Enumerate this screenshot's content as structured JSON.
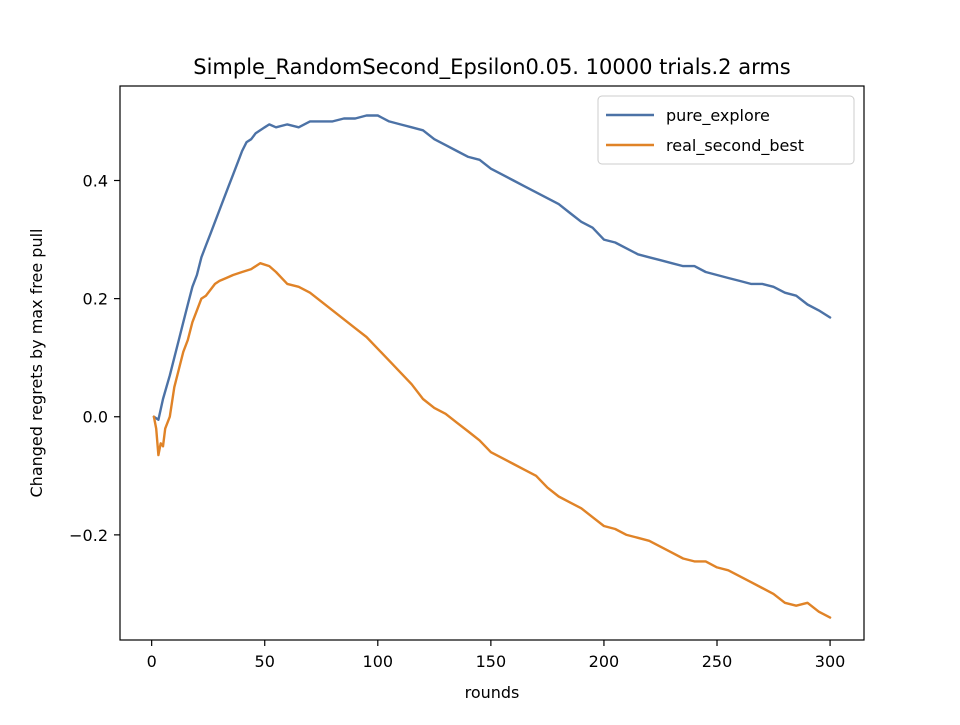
{
  "chart_data": {
    "type": "line",
    "title": "Simple_RandomSecond_Epsilon0.05. 10000 trials.2 arms",
    "xlabel": "rounds",
    "ylabel": "Changed regrets by max free pull",
    "xlim": [
      -14,
      315
    ],
    "ylim": [
      -0.378,
      0.56
    ],
    "xticks": [
      0,
      50,
      100,
      150,
      200,
      250,
      300
    ],
    "xtick_labels": [
      "0",
      "50",
      "100",
      "150",
      "200",
      "250",
      "300"
    ],
    "yticks": [
      -0.2,
      0.0,
      0.2,
      0.4
    ],
    "ytick_labels": [
      "−0.2",
      "0.0",
      "0.2",
      "0.4"
    ],
    "grid": false,
    "legend_position": "top-right",
    "series": [
      {
        "name": "pure_explore",
        "color": "#4c72a6",
        "x": [
          1,
          3,
          5,
          8,
          10,
          12,
          14,
          16,
          18,
          20,
          22,
          24,
          26,
          28,
          30,
          32,
          34,
          36,
          38,
          40,
          42,
          44,
          46,
          48,
          50,
          52,
          55,
          60,
          65,
          70,
          75,
          80,
          85,
          90,
          95,
          100,
          105,
          110,
          115,
          120,
          125,
          130,
          135,
          140,
          145,
          150,
          155,
          160,
          165,
          170,
          175,
          180,
          185,
          190,
          195,
          200,
          205,
          210,
          215,
          220,
          225,
          230,
          235,
          240,
          245,
          250,
          255,
          260,
          265,
          270,
          275,
          280,
          285,
          290,
          295,
          300
        ],
        "y": [
          0.0,
          -0.005,
          0.03,
          0.07,
          0.1,
          0.13,
          0.16,
          0.19,
          0.22,
          0.24,
          0.27,
          0.29,
          0.31,
          0.33,
          0.35,
          0.37,
          0.39,
          0.41,
          0.43,
          0.45,
          0.465,
          0.47,
          0.48,
          0.485,
          0.49,
          0.495,
          0.49,
          0.495,
          0.49,
          0.5,
          0.5,
          0.5,
          0.505,
          0.505,
          0.51,
          0.51,
          0.5,
          0.495,
          0.49,
          0.485,
          0.47,
          0.46,
          0.45,
          0.44,
          0.435,
          0.42,
          0.41,
          0.4,
          0.39,
          0.38,
          0.37,
          0.36,
          0.345,
          0.33,
          0.32,
          0.3,
          0.295,
          0.285,
          0.275,
          0.27,
          0.265,
          0.26,
          0.255,
          0.255,
          0.245,
          0.24,
          0.235,
          0.23,
          0.225,
          0.225,
          0.22,
          0.21,
          0.205,
          0.19,
          0.18,
          0.168
        ]
      },
      {
        "name": "real_second_best",
        "color": "#e08327",
        "x": [
          1,
          2,
          3,
          4,
          5,
          6,
          8,
          10,
          12,
          14,
          16,
          18,
          20,
          22,
          24,
          26,
          28,
          30,
          33,
          36,
          40,
          44,
          48,
          52,
          55,
          60,
          65,
          70,
          75,
          80,
          85,
          90,
          95,
          100,
          105,
          110,
          115,
          120,
          125,
          130,
          135,
          140,
          145,
          150,
          155,
          160,
          165,
          170,
          175,
          180,
          185,
          190,
          195,
          200,
          205,
          210,
          215,
          220,
          225,
          230,
          235,
          240,
          245,
          250,
          255,
          260,
          265,
          270,
          275,
          280,
          285,
          290,
          295,
          300
        ],
        "y": [
          0.0,
          -0.02,
          -0.065,
          -0.045,
          -0.05,
          -0.02,
          0.0,
          0.05,
          0.08,
          0.11,
          0.13,
          0.16,
          0.18,
          0.2,
          0.205,
          0.215,
          0.225,
          0.23,
          0.235,
          0.24,
          0.245,
          0.25,
          0.26,
          0.255,
          0.245,
          0.225,
          0.22,
          0.21,
          0.195,
          0.18,
          0.165,
          0.15,
          0.135,
          0.115,
          0.095,
          0.075,
          0.055,
          0.03,
          0.015,
          0.005,
          -0.01,
          -0.025,
          -0.04,
          -0.06,
          -0.07,
          -0.08,
          -0.09,
          -0.1,
          -0.12,
          -0.135,
          -0.145,
          -0.155,
          -0.17,
          -0.185,
          -0.19,
          -0.2,
          -0.205,
          -0.21,
          -0.22,
          -0.23,
          -0.24,
          -0.245,
          -0.245,
          -0.255,
          -0.26,
          -0.27,
          -0.28,
          -0.29,
          -0.3,
          -0.315,
          -0.32,
          -0.315,
          -0.33,
          -0.34
        ]
      }
    ]
  }
}
